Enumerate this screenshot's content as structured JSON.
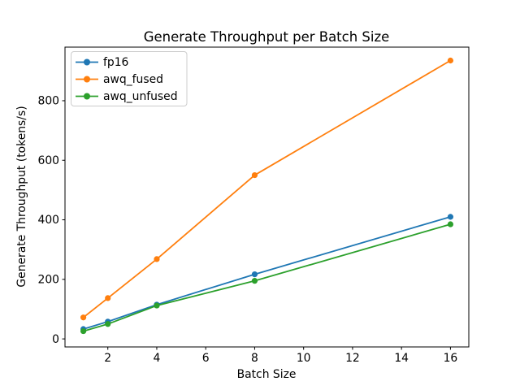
{
  "figure": {
    "background": "#ffffff",
    "axes_edge_color": "#000000"
  },
  "chart_data": {
    "type": "line",
    "title": "Generate Throughput per Batch Size",
    "xlabel": "Batch Size",
    "ylabel": "Generate Throughput (tokens/s)",
    "x": [
      1,
      2,
      4,
      8,
      16
    ],
    "series": [
      {
        "name": "fp16",
        "color": "#1f77b4",
        "values": [
          33,
          58,
          115,
          217,
          410
        ]
      },
      {
        "name": "awq_fused",
        "color": "#ff7f0e",
        "values": [
          72,
          137,
          268,
          550,
          935
        ]
      },
      {
        "name": "awq_unfused",
        "color": "#2ca02c",
        "values": [
          26,
          50,
          112,
          195,
          385
        ]
      }
    ],
    "marker": "o",
    "xlim": [
      0.25,
      16.75
    ],
    "ylim": [
      -27,
      980
    ],
    "xticks": [
      2,
      4,
      6,
      8,
      10,
      12,
      14,
      16
    ],
    "yticks": [
      0,
      200,
      400,
      600,
      800
    ],
    "grid": false,
    "legend_position": "upper left"
  }
}
